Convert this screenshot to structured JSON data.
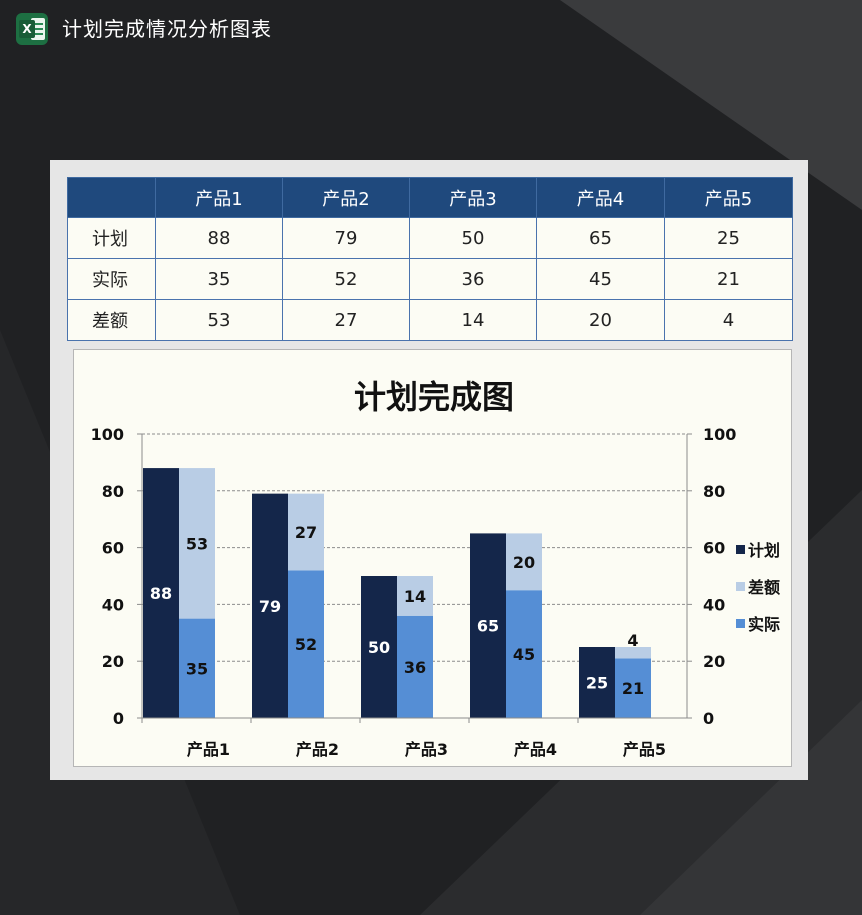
{
  "window": {
    "title": "计划完成情况分析图表",
    "app_icon": "excel-icon"
  },
  "table": {
    "headers": [
      "",
      "产品1",
      "产品2",
      "产品3",
      "产品4",
      "产品5"
    ],
    "rows": [
      {
        "label": "计划",
        "values": [
          "88",
          "79",
          "50",
          "65",
          "25"
        ]
      },
      {
        "label": "实际",
        "values": [
          "35",
          "52",
          "36",
          "45",
          "21"
        ]
      },
      {
        "label": "差额",
        "values": [
          "53",
          "27",
          "14",
          "20",
          "4"
        ]
      }
    ]
  },
  "chart_data": {
    "type": "bar",
    "title": "计划完成图",
    "categories": [
      "产品1",
      "产品2",
      "产品3",
      "产品4",
      "产品5"
    ],
    "series": [
      {
        "name": "计划",
        "values": [
          88,
          79,
          50,
          65,
          25
        ],
        "color": "#14264a",
        "stack": "plan"
      },
      {
        "name": "实际",
        "values": [
          35,
          52,
          36,
          45,
          21
        ],
        "color": "#558ed5",
        "stack": "actual"
      },
      {
        "name": "差额",
        "values": [
          53,
          27,
          14,
          20,
          4
        ],
        "color": "#b9cde5",
        "stack": "actual"
      }
    ],
    "legend_order": [
      "计划",
      "差额",
      "实际"
    ],
    "legend_position": "right",
    "ylim": [
      0,
      100
    ],
    "y_ticks": [
      "0",
      "20",
      "40",
      "60",
      "80",
      "100"
    ],
    "secondary_y_ticks": [
      "0",
      "20",
      "40",
      "60",
      "80",
      "100"
    ],
    "grid": true,
    "xlabel": "",
    "ylabel": ""
  }
}
